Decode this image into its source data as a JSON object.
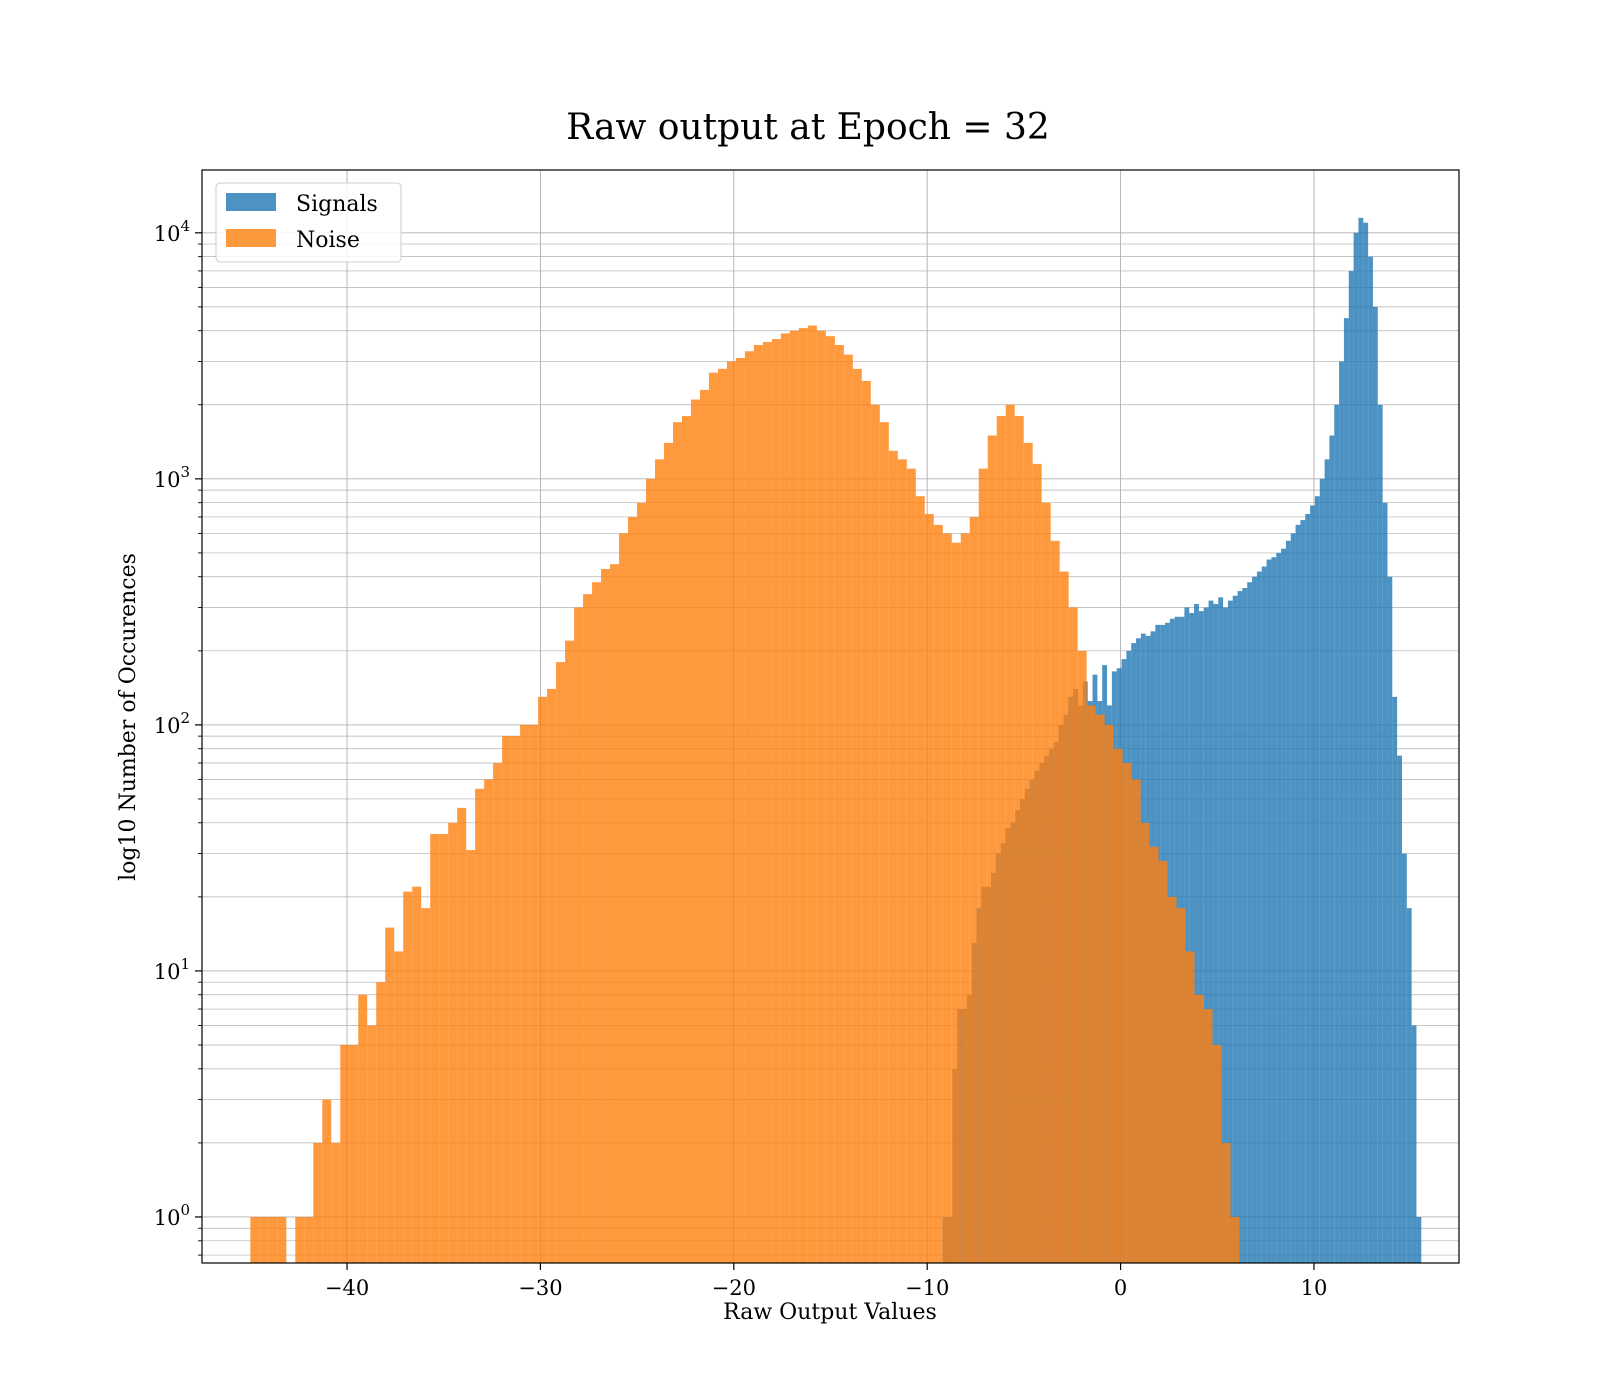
{
  "chart_data": {
    "type": "bar",
    "title": "Raw output at Epoch = 32",
    "xlabel": "Raw Output Values",
    "ylabel": "log10 Number of Occurences",
    "yscale": "log",
    "xlim": [
      -47.5,
      17.5
    ],
    "ylim": [
      0.65,
      18000
    ],
    "grid": true,
    "legend_position": "top-left",
    "x_ticks": [
      {
        "value": -40,
        "label": "−40"
      },
      {
        "value": -30,
        "label": "−30"
      },
      {
        "value": -20,
        "label": "−20"
      },
      {
        "value": -10,
        "label": "−10"
      },
      {
        "value": 0,
        "label": "0"
      },
      {
        "value": 10,
        "label": "10"
      }
    ],
    "y_ticks": [
      {
        "value": 1,
        "base": "10",
        "exp": "0"
      },
      {
        "value": 10,
        "base": "10",
        "exp": "1"
      },
      {
        "value": 100,
        "base": "10",
        "exp": "2"
      },
      {
        "value": 1000,
        "base": "10",
        "exp": "3"
      },
      {
        "value": 10000,
        "base": "10",
        "exp": "4"
      }
    ],
    "series": [
      {
        "name": "Signals",
        "color": "#1f77b4",
        "opacity": 0.8,
        "bin_start": -9.2,
        "bin_width": 0.25,
        "values": [
          1,
          1,
          4,
          7,
          7,
          8,
          13,
          18,
          22,
          22,
          25,
          30,
          33,
          38,
          40,
          45,
          50,
          55,
          60,
          65,
          70,
          75,
          80,
          85,
          100,
          110,
          130,
          140,
          120,
          150,
          125,
          160,
          125,
          175,
          120,
          165,
          170,
          185,
          200,
          215,
          225,
          235,
          230,
          240,
          255,
          255,
          260,
          270,
          275,
          275,
          300,
          285,
          310,
          290,
          300,
          320,
          310,
          330,
          300,
          320,
          335,
          350,
          360,
          380,
          400,
          420,
          440,
          470,
          480,
          500,
          520,
          560,
          600,
          650,
          680,
          720,
          780,
          850,
          1000,
          1200,
          1500,
          2000,
          3000,
          4500,
          7000,
          10000,
          11500,
          11000,
          8000,
          5000,
          2000,
          800,
          400,
          130,
          75,
          30,
          18,
          6,
          1
        ]
      },
      {
        "name": "Noise",
        "color": "#ff7f0e",
        "opacity": 0.8,
        "bin_start": -45.0,
        "bin_width": 0.465,
        "values": [
          1,
          1,
          1,
          1,
          0,
          1,
          1,
          2,
          3,
          2,
          5,
          5,
          8,
          6,
          9,
          15,
          12,
          21,
          22,
          18,
          36,
          36,
          40,
          46,
          31,
          55,
          60,
          70,
          90,
          90,
          100,
          100,
          130,
          140,
          180,
          220,
          300,
          340,
          380,
          430,
          450,
          600,
          700,
          800,
          1000,
          1200,
          1400,
          1700,
          1800,
          2100,
          2300,
          2700,
          2800,
          3000,
          3100,
          3300,
          3500,
          3600,
          3700,
          3900,
          4000,
          4100,
          4200,
          4000,
          3800,
          3500,
          3200,
          2800,
          2500,
          2000,
          1700,
          1300,
          1200,
          1100,
          850,
          720,
          650,
          600,
          550,
          600,
          700,
          1100,
          1500,
          1800,
          2000,
          1800,
          1400,
          1150,
          800,
          560,
          420,
          300,
          200,
          120,
          110,
          100,
          80,
          70,
          60,
          40,
          32,
          28,
          20,
          18,
          12,
          8,
          7,
          5,
          2,
          1
        ]
      }
    ]
  }
}
